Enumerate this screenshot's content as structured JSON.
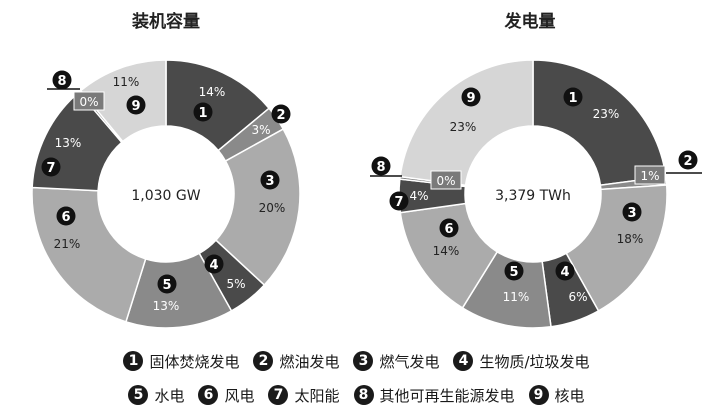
{
  "chart_data": [
    {
      "type": "pie",
      "title": "装机容量",
      "center_label": "1,030 GW",
      "slices": [
        {
          "id": "1",
          "value": 14,
          "label": "14%",
          "color": "#4a4a4a"
        },
        {
          "id": "2",
          "value": 3,
          "label": "3%",
          "color": "#8a8a8a"
        },
        {
          "id": "3",
          "value": 20,
          "label": "20%",
          "color": "#ababab"
        },
        {
          "id": "4",
          "value": 5,
          "label": "5%",
          "color": "#4a4a4a"
        },
        {
          "id": "5",
          "value": 13,
          "label": "13%",
          "color": "#8a8a8a"
        },
        {
          "id": "6",
          "value": 21,
          "label": "21%",
          "color": "#ababab"
        },
        {
          "id": "7",
          "value": 13,
          "label": "13%",
          "color": "#4a4a4a"
        },
        {
          "id": "8",
          "value": 0.3,
          "label": "0%",
          "color": "#7a7a7a"
        },
        {
          "id": "9",
          "value": 11,
          "label": "11%",
          "color": "#d6d6d6"
        }
      ]
    },
    {
      "type": "pie",
      "title": "发电量",
      "center_label": "3,379 TWh",
      "slices": [
        {
          "id": "1",
          "value": 23,
          "label": "23%",
          "color": "#4a4a4a"
        },
        {
          "id": "2",
          "value": 1,
          "label": "1%",
          "color": "#8a8a8a"
        },
        {
          "id": "3",
          "value": 18,
          "label": "18%",
          "color": "#ababab"
        },
        {
          "id": "4",
          "value": 6,
          "label": "6%",
          "color": "#4a4a4a"
        },
        {
          "id": "5",
          "value": 11,
          "label": "11%",
          "color": "#8a8a8a"
        },
        {
          "id": "6",
          "value": 14,
          "label": "14%",
          "color": "#ababab"
        },
        {
          "id": "7",
          "value": 4,
          "label": "4%",
          "color": "#4a4a4a"
        },
        {
          "id": "8",
          "value": 0.3,
          "label": "0%",
          "color": "#7a7a7a"
        },
        {
          "id": "9",
          "value": 23,
          "label": "23%",
          "color": "#d6d6d6"
        }
      ]
    }
  ],
  "legend": {
    "rows": [
      [
        {
          "badge": "1",
          "label": "固体焚烧发电"
        },
        {
          "badge": "2",
          "label": "燃油发电"
        },
        {
          "badge": "3",
          "label": "燃气发电"
        },
        {
          "badge": "4",
          "label": "生物质/垃圾发电"
        }
      ],
      [
        {
          "badge": "5",
          "label": "水电"
        },
        {
          "badge": "6",
          "label": "风电"
        },
        {
          "badge": "7",
          "label": "太阳能"
        },
        {
          "badge": "8",
          "label": "其他可再生能源发电"
        },
        {
          "badge": "9",
          "label": "核电"
        }
      ]
    ]
  }
}
